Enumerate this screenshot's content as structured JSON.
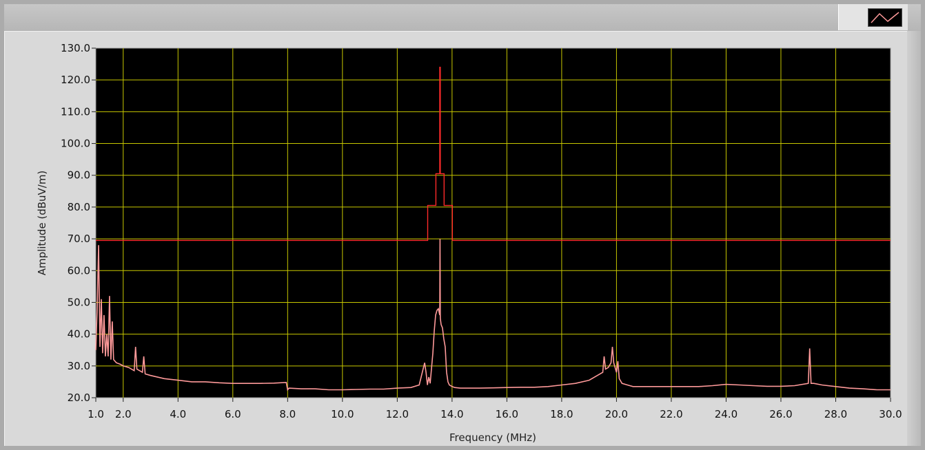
{
  "chart_data": {
    "type": "line",
    "title": "",
    "xlabel": "Frequency (MHz)",
    "ylabel": "Amplitude (dBuV/m)",
    "xlim": [
      1.0,
      30.0
    ],
    "ylim": [
      20.0,
      130.0
    ],
    "grid": true,
    "grid_color": "#c8c800",
    "plot_background": "#000000",
    "x_ticks": [
      1.0,
      2.0,
      4.0,
      6.0,
      8.0,
      10.0,
      12.0,
      14.0,
      16.0,
      18.0,
      20.0,
      22.0,
      24.0,
      26.0,
      28.0,
      30.0
    ],
    "x_tick_labels": [
      "1.0",
      "2.0",
      "4.0",
      "6.0",
      "8.0",
      "10.0",
      "12.0",
      "14.0",
      "16.0",
      "18.0",
      "20.0",
      "22.0",
      "24.0",
      "26.0",
      "28.0",
      "30.0"
    ],
    "y_ticks": [
      20.0,
      30.0,
      40.0,
      50.0,
      60.0,
      70.0,
      80.0,
      90.0,
      100.0,
      110.0,
      120.0,
      130.0
    ],
    "y_tick_labels": [
      "20.0",
      "30.0",
      "40.0",
      "50.0",
      "60.0",
      "70.0",
      "80.0",
      "90.0",
      "100.0",
      "110.0",
      "120.0",
      "130.0"
    ],
    "series": [
      {
        "color": "#ff2a2a",
        "style": "step",
        "x": [
          1.0,
          13.11,
          13.11,
          13.41,
          13.41,
          13.55,
          13.55,
          13.57,
          13.57,
          13.71,
          13.71,
          14.01,
          14.01,
          30.0
        ],
        "y": [
          69.5,
          69.5,
          80.5,
          80.5,
          90.5,
          90.5,
          124.0,
          124.0,
          90.5,
          90.5,
          80.5,
          80.5,
          69.5,
          69.5
        ]
      },
      {
        "color": "#ff9a9a",
        "style": "line",
        "x": [
          1.0,
          1.05,
          1.1,
          1.15,
          1.2,
          1.25,
          1.3,
          1.35,
          1.4,
          1.45,
          1.5,
          1.55,
          1.6,
          1.65,
          1.75,
          1.9,
          2.0,
          2.2,
          2.4,
          2.45,
          2.5,
          2.7,
          2.75,
          2.8,
          3.0,
          3.5,
          4.0,
          4.5,
          5.0,
          5.5,
          6.0,
          6.5,
          7.0,
          7.5,
          7.95,
          8.0,
          8.05,
          8.5,
          9.0,
          9.5,
          10.0,
          10.5,
          11.0,
          11.5,
          12.0,
          12.5,
          12.8,
          13.0,
          13.05,
          13.1,
          13.15,
          13.2,
          13.3,
          13.35,
          13.4,
          13.45,
          13.5,
          13.55,
          13.56,
          13.57,
          13.6,
          13.65,
          13.7,
          13.75,
          13.8,
          13.85,
          13.9,
          14.0,
          14.1,
          14.3,
          14.5,
          15.0,
          15.5,
          16.0,
          16.5,
          17.0,
          17.5,
          18.0,
          18.5,
          19.0,
          19.3,
          19.5,
          19.55,
          19.6,
          19.7,
          19.8,
          19.85,
          19.9,
          20.0,
          20.05,
          20.1,
          20.2,
          20.4,
          20.6,
          21.0,
          21.5,
          22.0,
          22.5,
          23.0,
          23.5,
          24.0,
          24.5,
          25.0,
          25.5,
          26.0,
          26.5,
          27.0,
          27.05,
          27.1,
          27.2,
          27.5,
          28.0,
          28.5,
          29.0,
          29.5,
          30.0
        ],
        "y": [
          35.0,
          48.0,
          68.0,
          36.0,
          51.0,
          34.0,
          46.0,
          33.0,
          40.0,
          33.0,
          52.0,
          32.0,
          44.0,
          32.0,
          31.0,
          30.5,
          30.0,
          29.5,
          28.5,
          36.0,
          29.0,
          28.0,
          33.0,
          27.5,
          27.0,
          26.0,
          25.5,
          25.0,
          25.0,
          24.7,
          24.5,
          24.5,
          24.5,
          24.6,
          24.8,
          22.5,
          23.0,
          22.8,
          22.8,
          22.5,
          22.5,
          22.6,
          22.7,
          22.7,
          23.0,
          23.2,
          24.0,
          31.0,
          28.0,
          24.0,
          26.5,
          24.5,
          34.0,
          41.0,
          46.0,
          47.5,
          48.0,
          46.0,
          70.0,
          45.0,
          43.0,
          42.0,
          38.5,
          36.0,
          28.0,
          25.0,
          24.0,
          23.5,
          23.2,
          23.0,
          23.0,
          23.0,
          23.1,
          23.2,
          23.3,
          23.3,
          23.5,
          24.0,
          24.5,
          25.5,
          27.0,
          28.0,
          33.0,
          29.0,
          29.5,
          31.0,
          36.0,
          31.0,
          28.0,
          31.5,
          26.0,
          24.5,
          24.0,
          23.5,
          23.5,
          23.5,
          23.5,
          23.5,
          23.5,
          23.8,
          24.2,
          24.0,
          23.8,
          23.6,
          23.6,
          23.8,
          24.5,
          35.5,
          24.5,
          24.5,
          24.0,
          23.5,
          23.0,
          22.8,
          22.5,
          22.5
        ]
      }
    ]
  }
}
